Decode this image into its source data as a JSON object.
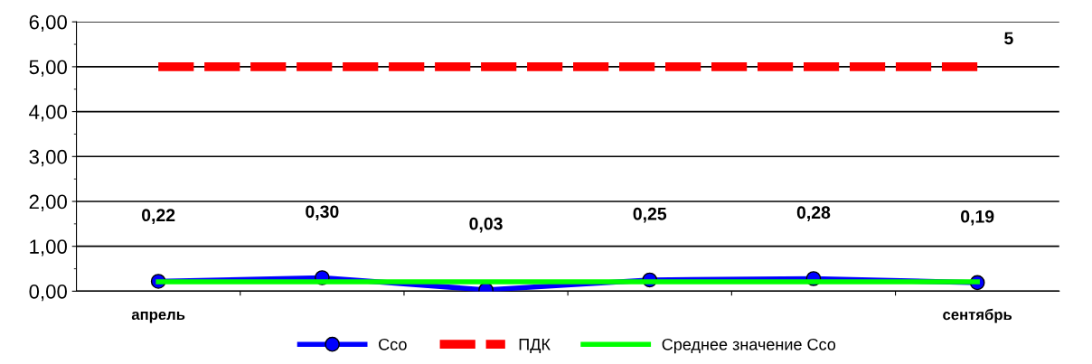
{
  "chart_data": {
    "type": "line",
    "categories": [
      "апрель",
      null,
      null,
      null,
      null,
      "сентябрь"
    ],
    "series": [
      {
        "name": "Cсо",
        "color": "#0000ff",
        "values": [
          0.22,
          0.3,
          0.03,
          0.25,
          0.28,
          0.19
        ],
        "marker": "circle",
        "line_style": "solid",
        "value_labels": [
          "0,22",
          "0,30",
          "0,03",
          "0,25",
          "0,28",
          "0,19"
        ]
      },
      {
        "name": "ПДК",
        "color": "#ff0000",
        "values": [
          5,
          5,
          5,
          5,
          5,
          5
        ],
        "marker": "none",
        "line_style": "dashed",
        "value_labels": [
          null,
          null,
          null,
          null,
          null,
          "5"
        ]
      },
      {
        "name": "Среднее значение Cсо",
        "color": "#00ff00",
        "values": [
          0.21,
          0.21,
          0.21,
          0.21,
          0.21,
          0.21
        ],
        "marker": "none",
        "line_style": "solid"
      }
    ],
    "ylim": [
      0,
      6
    ],
    "yticks": [
      {
        "value": 0,
        "label": "0,00"
      },
      {
        "value": 1,
        "label": "1,00"
      },
      {
        "value": 2,
        "label": "2,00"
      },
      {
        "value": 3,
        "label": "3,00"
      },
      {
        "value": 4,
        "label": "4,00"
      },
      {
        "value": 5,
        "label": "5,00"
      },
      {
        "value": 6,
        "label": "6,00"
      }
    ],
    "grid": "y",
    "legend": "bottom"
  }
}
